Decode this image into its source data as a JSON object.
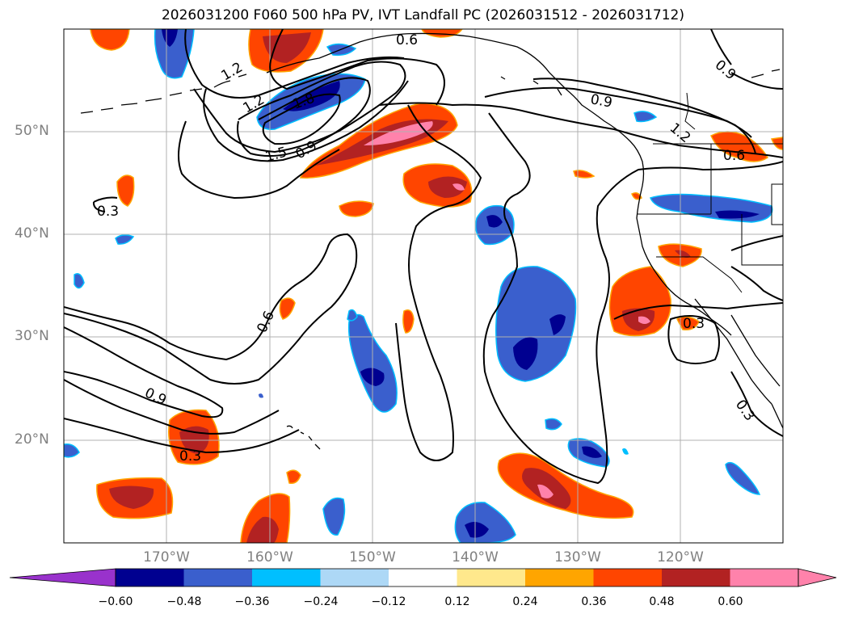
{
  "title": "2026031200 F060 500 hPa PV, IVT Landfall PC (2026031512 - 2026031712)",
  "lat_labels": [
    "50°N",
    "40°N",
    "30°N",
    "20°N"
  ],
  "lon_labels": [
    "170°W",
    "160°W",
    "150°W",
    "140°W",
    "130°W",
    "120°W"
  ],
  "contour_labels": [
    "0.6",
    "1.2",
    "1.2",
    "1.5",
    "0.9",
    "1.8",
    "0.9",
    "0.9",
    "1.2",
    "0.6",
    "0.3",
    "0.6",
    "0.9",
    "0.3",
    "0.3",
    "0.3"
  ],
  "colorbar": {
    "ticks": [
      "−0.60",
      "−0.48",
      "−0.36",
      "−0.24",
      "−0.12",
      "0.12",
      "0.24",
      "0.36",
      "0.48",
      "0.60"
    ],
    "colors": [
      "#9932cc",
      "#000090",
      "#3a5fcd",
      "#00bfff",
      "#add8f6",
      "#ffffff",
      "#ffe88c",
      "#ffa500",
      "#ff4500",
      "#b22222",
      "#ff82ab",
      "#ff82ab"
    ]
  }
}
